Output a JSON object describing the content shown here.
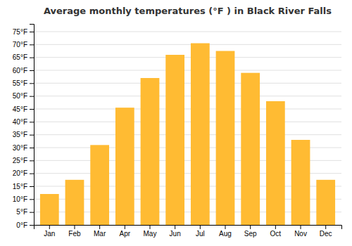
{
  "chart_data": {
    "type": "bar",
    "title": "Average monthly temperatures (°F ) in Black River Falls",
    "categories": [
      "Jan",
      "Feb",
      "Mar",
      "Apr",
      "May",
      "Jun",
      "Jul",
      "Aug",
      "Sep",
      "Oct",
      "Nov",
      "Dec"
    ],
    "values": [
      12,
      17.5,
      31,
      45.5,
      57,
      66,
      70.5,
      67.5,
      59,
      48,
      33,
      17.5
    ],
    "color": "#FFBB33",
    "ylim": [
      0,
      78
    ],
    "yticks": [
      {
        "value": 0,
        "label": "0°F"
      },
      {
        "value": 5,
        "label": "5°F"
      },
      {
        "value": 10,
        "label": "10°F"
      },
      {
        "value": 15,
        "label": "15°F"
      },
      {
        "value": 20,
        "label": "20°F"
      },
      {
        "value": 25,
        "label": "25°F"
      },
      {
        "value": 30,
        "label": "30°F"
      },
      {
        "value": 35,
        "label": "35°F"
      },
      {
        "value": 40,
        "label": "40°F"
      },
      {
        "value": 45,
        "label": "45°F"
      },
      {
        "value": 50,
        "label": "50°F"
      },
      {
        "value": 55,
        "label": "55°F"
      },
      {
        "value": 60,
        "label": "60°F"
      },
      {
        "value": 65,
        "label": "65°F"
      },
      {
        "value": 70,
        "label": "70°F"
      },
      {
        "value": 75,
        "label": "75°F"
      }
    ],
    "grid": true
  }
}
